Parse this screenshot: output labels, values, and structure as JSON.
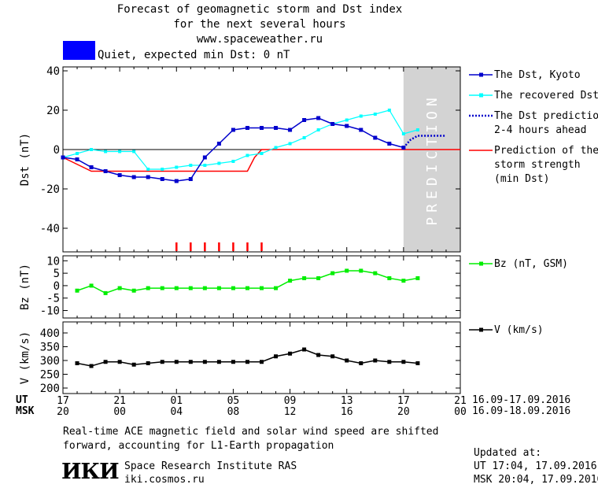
{
  "header": {
    "title_lines": [
      "Forecast of geomagnetic storm and Dst index",
      "for the next several hours",
      "www.spaceweather.ru"
    ],
    "status_color": "#0000ff",
    "status_text": "Quiet, expected min Dst: 0 nT"
  },
  "prediction_label": "PREDICTION",
  "legend": {
    "dst_kyoto": "The Dst, Kyoto",
    "recovered": "The recovered Dst",
    "prediction_lines": [
      "The Dst prediction",
      "2-4 hours ahead"
    ],
    "strength_lines": [
      "Prediction of the",
      "storm strength",
      "(min Dst)"
    ],
    "bz": "Bz (nT, GSM)",
    "v": "V (km/s)"
  },
  "time_axis": {
    "ut_label": "UT",
    "msk_label": "MSK",
    "ut_ticks": [
      "17",
      "21",
      "01",
      "05",
      "09",
      "13",
      "17",
      "21"
    ],
    "msk_ticks": [
      "20",
      "00",
      "04",
      "08",
      "12",
      "16",
      "20",
      "00"
    ],
    "ut_range": "16.09-17.09.2016",
    "msk_range": "16.09-18.09.2016"
  },
  "footer": {
    "note_lines": [
      "Real-time ACE magnetic field and solar wind speed are shifted",
      "forward, accounting for L1-Earth propagation"
    ],
    "logo": "ИКИ",
    "institute": "Space Research Institute RAS",
    "site": "iki.cosmos.ru",
    "updated_label": "Updated at:",
    "updated_ut": "UT  17:04, 17.09.2016",
    "updated_msk": "MSK 20:04, 17.09.2016"
  },
  "colors": {
    "dst": "#0000cc",
    "recovered": "#00ffff",
    "prediction": "#0000cc",
    "strength": "#ff0000",
    "bz": "#00ee00",
    "v": "#000000",
    "prediction_zone": "#d3d3d3",
    "storm_marks": "#ff0000"
  },
  "chart_data": [
    {
      "type": "line",
      "ylabel": "Dst (nT)",
      "xlim": [
        0,
        28
      ],
      "ylim": [
        -52,
        42
      ],
      "yticks": [
        40,
        20,
        0,
        -20,
        -40
      ],
      "prediction_zone_x": [
        24,
        28
      ],
      "series": [
        {
          "name": "The Dst, Kyoto",
          "x": [
            0,
            1,
            2,
            3,
            4,
            5,
            6,
            7,
            8,
            9,
            10,
            11,
            12,
            13,
            14,
            15,
            16,
            17,
            18,
            19,
            20,
            21,
            22,
            23,
            24
          ],
          "y": [
            -4,
            -5,
            -9,
            -11,
            -13,
            -14,
            -14,
            -15,
            -16,
            -15,
            -4,
            3,
            10,
            11,
            11,
            11,
            10,
            15,
            16,
            13,
            12,
            10,
            6,
            3,
            1
          ]
        },
        {
          "name": "The recovered Dst",
          "x": [
            0,
            1,
            2,
            3,
            4,
            5,
            6,
            7,
            8,
            9,
            10,
            11,
            12,
            13,
            14,
            15,
            16,
            17,
            18,
            19,
            20,
            21,
            22,
            23,
            24,
            25
          ],
          "y": [
            -4,
            -2,
            0,
            -1,
            -1,
            -1,
            -10,
            -10,
            -9,
            -8,
            -8,
            -7,
            -6,
            -3,
            -2,
            1,
            3,
            6,
            10,
            13,
            15,
            17,
            18,
            20,
            8,
            10
          ]
        },
        {
          "name": "The Dst prediction",
          "x": [
            24,
            24.5,
            25,
            26,
            27
          ],
          "y": [
            1,
            5,
            7,
            7,
            7
          ]
        },
        {
          "name": "Prediction of the storm strength",
          "x": [
            0,
            2,
            13,
            13.5,
            14,
            28
          ],
          "y": [
            -4,
            -11,
            -11,
            -4,
            0,
            0
          ]
        }
      ],
      "storm_marks_x": [
        8,
        9,
        10,
        11,
        12,
        13,
        14
      ]
    },
    {
      "type": "line",
      "ylabel": "Bz (nT)",
      "xlim": [
        0,
        28
      ],
      "ylim": [
        -13,
        12
      ],
      "yticks": [
        10,
        5,
        0,
        -5,
        -10
      ],
      "series": [
        {
          "name": "Bz (nT, GSM)",
          "x": [
            1,
            2,
            3,
            4,
            5,
            6,
            7,
            8,
            9,
            10,
            11,
            12,
            13,
            14,
            15,
            16,
            17,
            18,
            19,
            20,
            21,
            22,
            23,
            24,
            25
          ],
          "y": [
            -2,
            0,
            -3,
            -1,
            -2,
            -1,
            -1,
            -1,
            -1,
            -1,
            -1,
            -1,
            -1,
            -1,
            -1,
            2,
            3,
            3,
            5,
            6,
            6,
            5,
            3,
            2,
            3
          ]
        }
      ]
    },
    {
      "type": "line",
      "ylabel": "V (km/s)",
      "xlim": [
        0,
        28
      ],
      "ylim": [
        180,
        440
      ],
      "yticks": [
        400,
        350,
        300,
        250,
        200
      ],
      "series": [
        {
          "name": "V (km/s)",
          "x": [
            1,
            2,
            3,
            4,
            5,
            6,
            7,
            8,
            9,
            10,
            11,
            12,
            13,
            14,
            15,
            16,
            17,
            18,
            19,
            20,
            21,
            22,
            23,
            24,
            25
          ],
          "y": [
            290,
            280,
            295,
            295,
            285,
            290,
            295,
            295,
            295,
            295,
            295,
            295,
            295,
            295,
            315,
            325,
            340,
            320,
            315,
            300,
            290,
            300,
            295,
            295,
            290
          ]
        }
      ]
    }
  ]
}
